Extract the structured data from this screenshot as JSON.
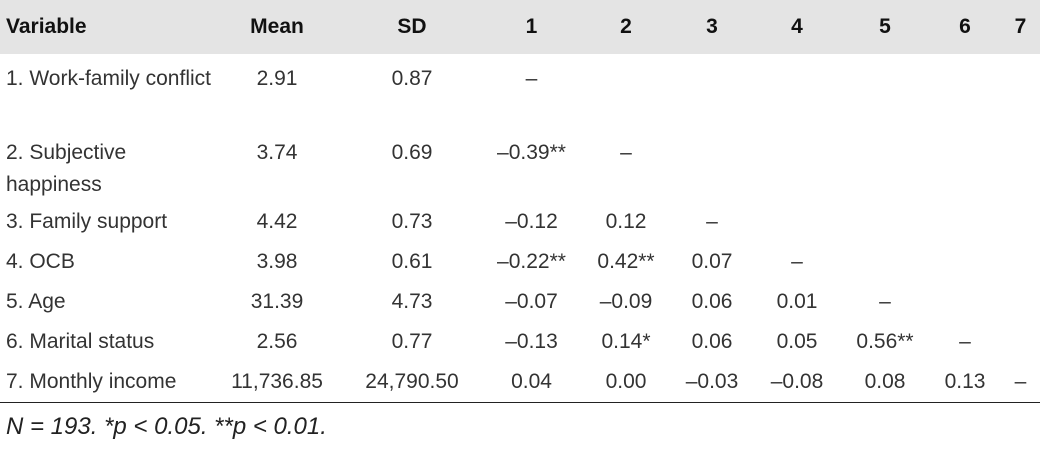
{
  "table": {
    "headers": [
      "Variable",
      "Mean",
      "SD",
      "1",
      "2",
      "3",
      "4",
      "5",
      "6",
      "7"
    ],
    "rows": [
      [
        "1. Work-family conflict",
        "2.91",
        "0.87",
        "–",
        "",
        "",
        "",
        "",
        "",
        ""
      ],
      [
        "2. Subjective happiness",
        "3.74",
        "0.69",
        "–0.39**",
        "–",
        "",
        "",
        "",
        "",
        ""
      ],
      [
        "3. Family support",
        "4.42",
        "0.73",
        "–0.12",
        "0.12",
        "–",
        "",
        "",
        "",
        ""
      ],
      [
        "4. OCB",
        "3.98",
        "0.61",
        "–0.22**",
        "0.42**",
        "0.07",
        "–",
        "",
        "",
        ""
      ],
      [
        "5. Age",
        "31.39",
        "4.73",
        "–0.07",
        "–0.09",
        "0.06",
        "0.01",
        "–",
        "",
        ""
      ],
      [
        "6. Marital status",
        "2.56",
        "0.77",
        "–0.13",
        "0.14*",
        "0.06",
        "0.05",
        "0.56**",
        "–",
        ""
      ],
      [
        "7. Monthly income",
        "11,736.85",
        "24,790.50",
        "0.04",
        "0.00",
        "–0.03",
        "–0.08",
        "0.08",
        "0.13",
        "–"
      ]
    ],
    "note": "N = 193. *p < 0.05. **p < 0.01."
  }
}
